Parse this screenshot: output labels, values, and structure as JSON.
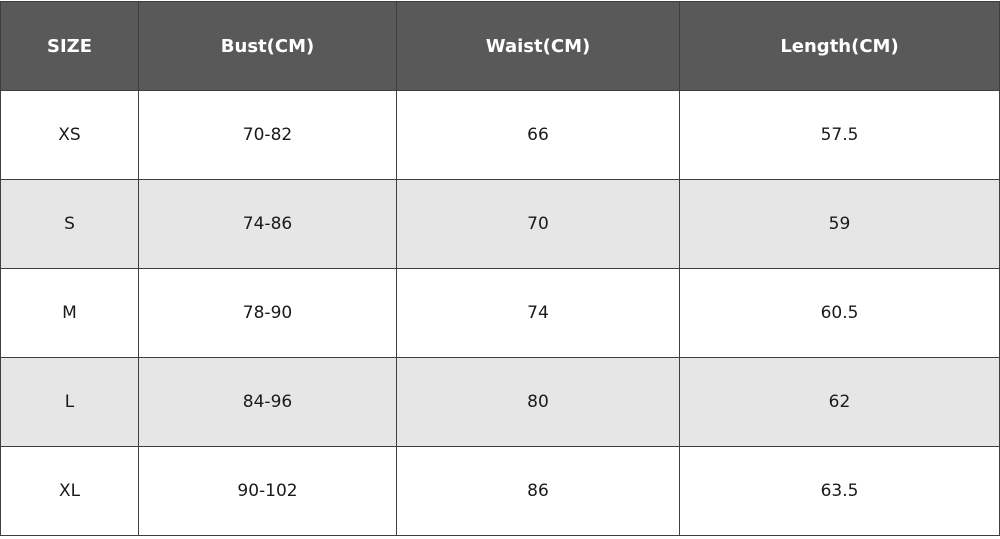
{
  "table": {
    "headers": {
      "size": "SIZE",
      "bust": "Bust(CM)",
      "waist": "Waist(CM)",
      "length": "Length(CM)"
    },
    "rows": [
      {
        "size": "XS",
        "bust": "70-82",
        "waist": "66",
        "length": "57.5"
      },
      {
        "size": "S",
        "bust": "74-86",
        "waist": "70",
        "length": "59"
      },
      {
        "size": "M",
        "bust": "78-90",
        "waist": "74",
        "length": "60.5"
      },
      {
        "size": "L",
        "bust": "84-96",
        "waist": "80",
        "length": "62"
      },
      {
        "size": "XL",
        "bust": "90-102",
        "waist": "86",
        "length": "63.5"
      }
    ]
  },
  "colors": {
    "header_bg": "#595959",
    "header_text": "#ffffff",
    "row_alt_bg": "#e6e6e6",
    "row_bg": "#ffffff",
    "border": "#3f3f3f"
  }
}
